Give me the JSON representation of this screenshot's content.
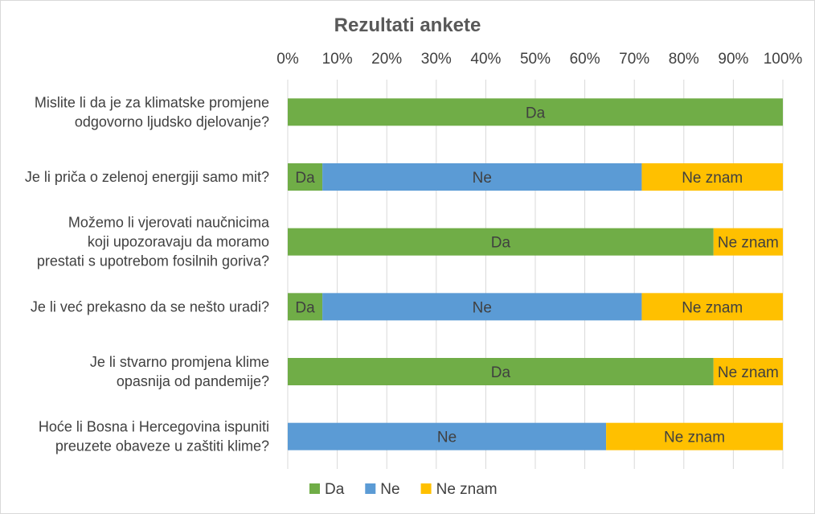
{
  "chart_data": {
    "type": "bar",
    "orientation": "horizontal",
    "stacked": "percent",
    "title": "Rezultati ankete",
    "xlabel": "",
    "ylabel": "",
    "xlim": [
      0,
      100
    ],
    "x_ticks": [
      "0%",
      "10%",
      "20%",
      "30%",
      "40%",
      "50%",
      "60%",
      "70%",
      "80%",
      "90%",
      "100%"
    ],
    "grid": "vertical",
    "legend_position": "bottom",
    "categories": [
      [
        "Mislite li da je za klimatske promjene",
        "odgovorno ljudsko djelovanje?"
      ],
      [
        "Je li priča o zelenoj energiji samo mit?"
      ],
      [
        "Možemo li vjerovati naučnicima",
        "koji upozoravaju da moramo",
        "prestati s upotrebom fosilnih goriva?"
      ],
      [
        "Je li već prekasno da se nešto uradi?"
      ],
      [
        "Je li stvarno promjena klime",
        "opasnija od pandemije?"
      ],
      [
        "Hoće li Bosna i Hercegovina ispuniti",
        "preuzete obaveze u zaštiti klime?"
      ]
    ],
    "series": [
      {
        "name": "Da",
        "color": "#70ad47",
        "values": [
          100,
          7,
          86,
          7,
          86,
          0
        ]
      },
      {
        "name": "Ne",
        "color": "#5b9bd5",
        "values": [
          0,
          64.5,
          0,
          64.5,
          0,
          64.3
        ]
      },
      {
        "name": "Ne znam",
        "color": "#ffc000",
        "values": [
          0,
          28.5,
          14,
          28.5,
          14,
          35.7
        ]
      }
    ]
  }
}
